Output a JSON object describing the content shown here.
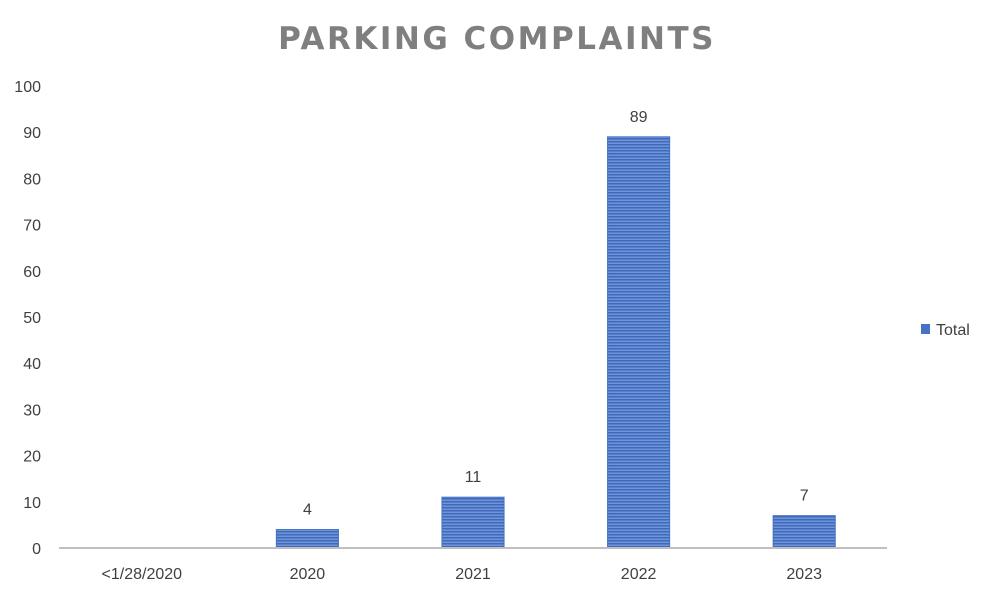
{
  "chart_data": {
    "type": "bar",
    "title": "PARKING COMPLAINTS",
    "categories": [
      "<1/28/2020",
      "2020",
      "2021",
      "2022",
      "2023"
    ],
    "series": [
      {
        "name": "Total",
        "values": [
          0,
          4,
          11,
          89,
          7
        ],
        "color": "#4472c4"
      }
    ],
    "data_labels": [
      "",
      "4",
      "11",
      "89",
      "7"
    ],
    "ylim": [
      0,
      100
    ],
    "yticks": [
      0,
      10,
      20,
      30,
      40,
      50,
      60,
      70,
      80,
      90,
      100
    ],
    "grid": false,
    "legend_position": "right",
    "axis_color": "#bfbfbf"
  }
}
